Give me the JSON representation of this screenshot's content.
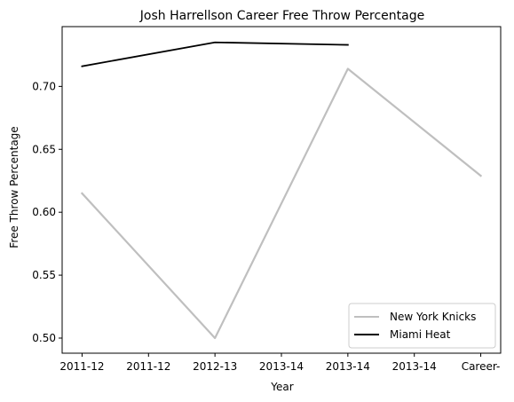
{
  "chart_data": {
    "type": "line",
    "title": "Josh Harrellson Career Free Throw Percentage",
    "xlabel": "Year",
    "ylabel": "Free Throw Percentage",
    "x_tick_labels": [
      "2011-12",
      "2011-12",
      "2012-13",
      "2013-14",
      "2013-14",
      "2013-14",
      "Career-"
    ],
    "y_ticks": [
      0.5,
      0.55,
      0.6,
      0.65,
      0.7
    ],
    "y_tick_labels": [
      "0.50",
      "0.55",
      "0.60",
      "0.65",
      "0.70"
    ],
    "ylim": [
      0.488,
      0.7475
    ],
    "xlim": [
      -0.3,
      6.3
    ],
    "grid": false,
    "legend_position": "lower-right",
    "series": [
      {
        "name": "New York Knicks",
        "color": "#bfbfbf",
        "points": [
          {
            "x": 0,
            "y": 0.615
          },
          {
            "x": 2,
            "y": 0.5
          },
          {
            "x": 4,
            "y": 0.714
          },
          {
            "x": 6,
            "y": 0.629
          }
        ]
      },
      {
        "name": "Miami Heat",
        "color": "#000000",
        "points": [
          {
            "x": 0,
            "y": 0.716
          },
          {
            "x": 2,
            "y": 0.735
          },
          {
            "x": 4,
            "y": 0.733
          }
        ]
      }
    ]
  }
}
